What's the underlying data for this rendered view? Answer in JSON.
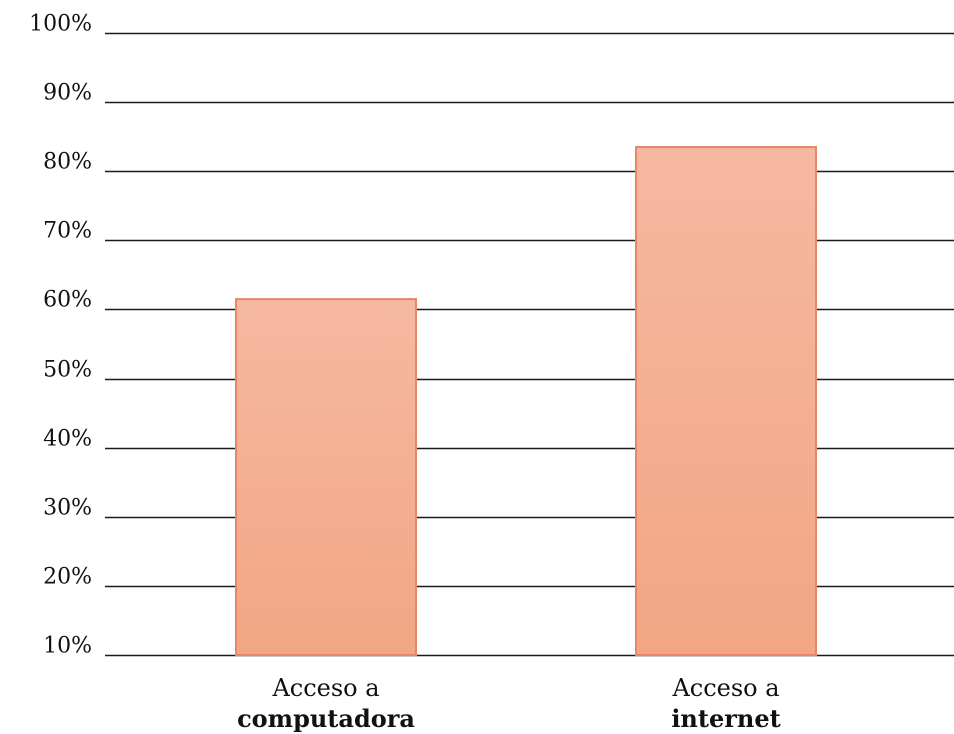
{
  "chart_data": {
    "type": "bar",
    "title": "",
    "xlabel": "",
    "ylabel": "",
    "ylim": [
      10,
      100
    ],
    "y_ticks": [
      "10%",
      "20%",
      "30%",
      "40%",
      "50%",
      "60%",
      "70%",
      "80%",
      "90%",
      "100%"
    ],
    "y_tick_values": [
      10,
      20,
      30,
      40,
      50,
      60,
      70,
      80,
      90,
      100
    ],
    "grid": true,
    "legend": "none",
    "categories": [
      {
        "line1": "Acceso a",
        "line2": "computadora"
      },
      {
        "line1": "Acceso a",
        "line2": "internet"
      }
    ],
    "values": [
      61.5,
      83.5
    ],
    "colors": {
      "bar_fill_top": "#f5b9a0",
      "bar_fill_bottom": "#f2a684",
      "bar_stroke": "#e8866a",
      "gridline": "#1a1a1a",
      "text": "#111111"
    }
  }
}
